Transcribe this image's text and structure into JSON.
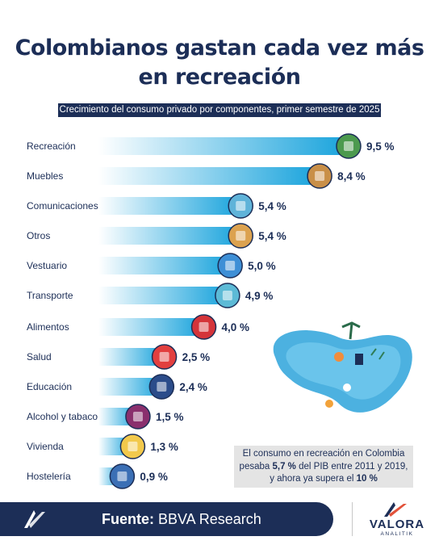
{
  "title_line1": "Colombianos gastan cada vez más",
  "title_line2": "en recreación",
  "subtitle": "Crecimiento del consumo privado por componentes, primer semestre de 2025",
  "chart_data": {
    "type": "bar",
    "orientation": "horizontal",
    "title": "Colombianos gastan cada vez más en recreación",
    "subtitle": "Crecimiento del consumo privado por componentes, primer semestre de 2025",
    "categories": [
      "Recreación",
      "Muebles",
      "Comunicaciones",
      "Otros",
      "Vestuario",
      "Transporte",
      "Alimentos",
      "Salud",
      "Educación",
      "Alcohol y tabaco",
      "Vivienda",
      "Hostelería"
    ],
    "values": [
      9.5,
      8.4,
      5.4,
      5.4,
      5.0,
      4.9,
      4.0,
      2.5,
      2.4,
      1.5,
      1.3,
      0.9
    ],
    "value_labels": [
      "9,5 %",
      "8,4 %",
      "5,4 %",
      "5,4 %",
      "5,0 %",
      "4,9 %",
      "4,0 %",
      "2,5 %",
      "2,4 %",
      "1,5 %",
      "1,3 %",
      "0,9 %"
    ],
    "unit": "%",
    "icons": [
      "money-ball-icon",
      "armchair-icon",
      "smartphone-icon",
      "box-icon",
      "shirt-icon",
      "car-icon",
      "apple-icon",
      "health-cross-icon",
      "graduation-cap-icon",
      "wine-icon",
      "house-icon",
      "hotel-icon"
    ],
    "icon_colors": [
      "#4c9a4e",
      "#c98f48",
      "#5fb3d9",
      "#dca24f",
      "#3e8fd6",
      "#5cbad6",
      "#d4343a",
      "#e23f3f",
      "#2b4c8a",
      "#8a2f6d",
      "#f2c94c",
      "#3b6fb5"
    ],
    "bar_gradient": [
      "#ffffff",
      "#18a3dc"
    ],
    "grid": false,
    "legend": "none"
  },
  "note": {
    "line1": "El consumo en recreación en Colombia",
    "line2_before": "pesaba ",
    "line2_value": "5,7 %",
    "line2_after": " del PIB entre 2011 y 2019,",
    "line3_before": "y ahora ya supera el ",
    "line3_value": "10 %"
  },
  "footer": {
    "source_label": "Fuente:",
    "source_value": " BBVA Research"
  },
  "brand": {
    "name": "VALORA",
    "sub": "ANALITIK"
  },
  "colors": {
    "navy": "#1c2e57",
    "bar_end": "#18a3dc",
    "note_bg": "#e4e4e4"
  }
}
